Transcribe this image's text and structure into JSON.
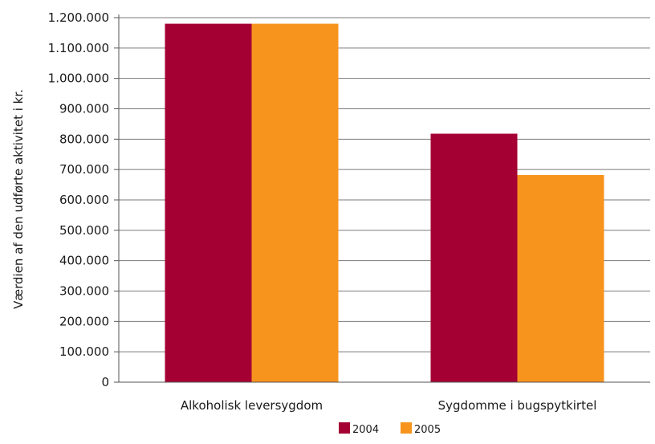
{
  "chart_data": {
    "type": "bar",
    "categories": [
      "Alkoholisk leversygdom",
      "Sygdomme i bugspytkirtel"
    ],
    "series": [
      {
        "name": "2004",
        "values": [
          1180000,
          818000
        ]
      },
      {
        "name": "2005",
        "values": [
          1180000,
          682000
        ]
      }
    ],
    "ylabel": "Værdien af den udførte aktivitet i kr.",
    "xlabel": "",
    "title": "",
    "ylim": [
      0,
      1200000
    ],
    "yticks": [
      0,
      100000,
      200000,
      300000,
      400000,
      500000,
      600000,
      700000,
      800000,
      900000,
      1000000,
      1100000,
      1200000
    ],
    "ytick_labels": [
      "0",
      "100.000",
      "200.000",
      "300.000",
      "400.000",
      "500.000",
      "600.000",
      "700.000",
      "800.000",
      "900.000",
      "1.000.000",
      "1.100.000",
      "1.200.000"
    ],
    "colors": [
      "#a50034",
      "#f7941d"
    ],
    "grid": true,
    "legend_position": "bottom-center"
  }
}
